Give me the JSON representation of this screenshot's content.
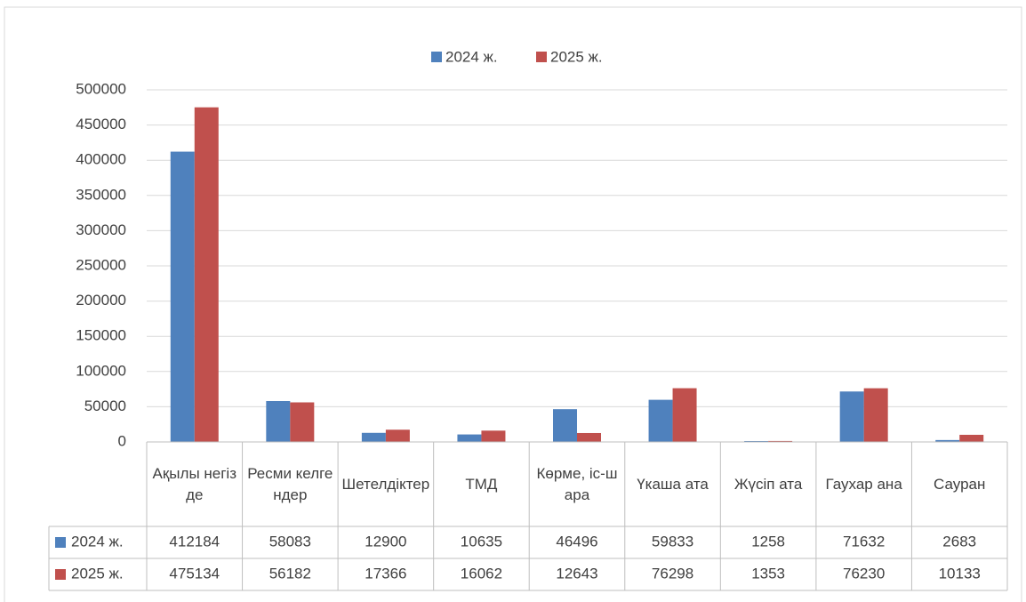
{
  "chart_data": {
    "type": "bar",
    "categories": [
      "Ақылы негізде",
      "Ресми келгендер",
      "Шетелдіктер",
      "ТМД",
      "Көрме, іс-шара",
      "Үкаша ата",
      "Жүсіп ата",
      "Гаухар ана",
      "Сауран"
    ],
    "series": [
      {
        "name": "2024 ж.",
        "color": "#4f81bd",
        "values": [
          412184,
          58083,
          12900,
          10635,
          46496,
          59833,
          1258,
          71632,
          2683
        ]
      },
      {
        "name": "2025 ж.",
        "color": "#c0504d",
        "values": [
          475134,
          56182,
          17366,
          16062,
          12643,
          76298,
          1353,
          76230,
          10133
        ]
      }
    ],
    "ylim": [
      0,
      500000
    ],
    "yticks": [
      0,
      50000,
      100000,
      150000,
      200000,
      250000,
      300000,
      350000,
      400000,
      450000,
      500000
    ],
    "grid": true,
    "legend": "top",
    "data_table": true
  }
}
